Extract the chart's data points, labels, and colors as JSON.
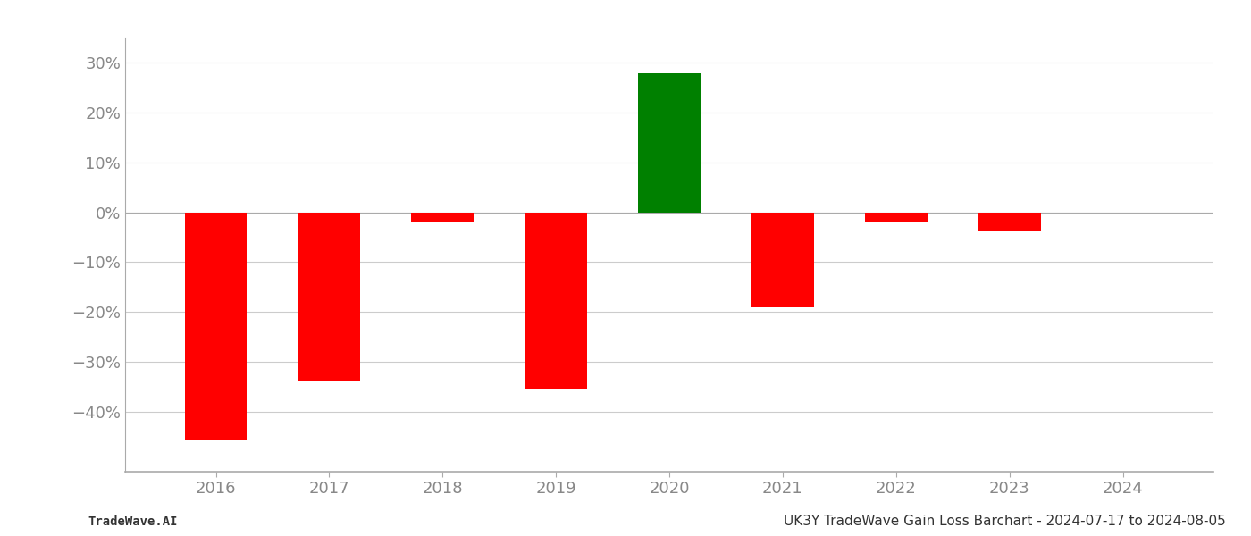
{
  "years": [
    2016,
    2017,
    2018,
    2019,
    2020,
    2021,
    2022,
    2023,
    2024
  ],
  "values": [
    -0.455,
    -0.34,
    -0.018,
    -0.355,
    0.278,
    -0.19,
    -0.018,
    -0.038,
    null
  ],
  "bar_colors": [
    "#ff0000",
    "#ff0000",
    "#ff0000",
    "#ff0000",
    "#008000",
    "#ff0000",
    "#ff0000",
    "#ff0000",
    null
  ],
  "ylim": [
    -0.52,
    0.35
  ],
  "yticks": [
    -0.4,
    -0.3,
    -0.2,
    -0.1,
    0.0,
    0.1,
    0.2,
    0.3
  ],
  "xlim": [
    2015.2,
    2024.8
  ],
  "title": "UK3Y TradeWave Gain Loss Barchart - 2024-07-17 to 2024-08-05",
  "footer_left": "TradeWave.AI",
  "bar_width": 0.55,
  "grid_color": "#cccccc",
  "background_color": "#ffffff",
  "axis_label_color": "#888888",
  "spine_color": "#aaaaaa",
  "title_fontsize": 11,
  "footer_fontsize": 10,
  "tick_fontsize": 13
}
